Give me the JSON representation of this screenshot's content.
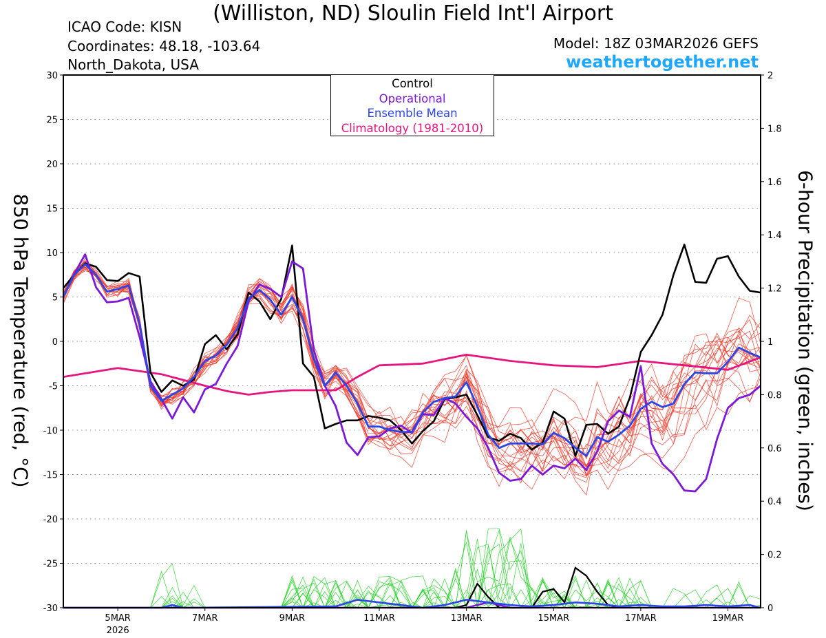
{
  "header": {
    "title": "(Williston, ND) Sloulin Field Int'l Airport",
    "icao": "ICAO Code: KISN",
    "coordinates": "Coordinates: 48.18, -103.64",
    "region": "North_Dakota, USA",
    "model": "Model: 18Z 03MAR2026 GEFS",
    "site": "weathertogether.net"
  },
  "colors": {
    "control": "#000000",
    "operational": "#7b19d6",
    "ensemble_mean": "#2b45e6",
    "climatology": "#e5157f",
    "members_temp": "#f03a2a",
    "members_precip": "#1fd01f"
  },
  "chart_data": {
    "type": "line",
    "title": "(Williston, ND) Sloulin Field Int'l Airport",
    "xlabel": "",
    "ylabel": "850 hPa Temperature (red, °C)",
    "y2label": "6-hour Precipitation (green, inches)",
    "x_unit": "day of March 2026",
    "xlim": [
      3.75,
      19.75
    ],
    "ylim": [
      -30,
      30
    ],
    "y2lim": [
      0,
      2
    ],
    "x_ticks": [
      5,
      7,
      9,
      11,
      13,
      15,
      17,
      19
    ],
    "x_tick_labels": [
      "5MAR",
      "7MAR",
      "9MAR",
      "11MAR",
      "13MAR",
      "15MAR",
      "17MAR",
      "19MAR"
    ],
    "x_year_label": "2026",
    "y_ticks": [
      30,
      25,
      20,
      15,
      10,
      5,
      0,
      -5,
      -10,
      -15,
      -20,
      -25,
      -30
    ],
    "y_tick_labels": [
      "30",
      "25",
      "20",
      "15",
      "10",
      "5",
      "0",
      "-5",
      "-10",
      "-15",
      "-20",
      "-25",
      "-30"
    ],
    "y2_ticks": [
      2,
      1.8,
      1.6,
      1.4,
      1.2,
      1,
      0.8,
      0.6,
      0.4,
      0.2,
      0
    ],
    "y2_tick_labels": [
      "2",
      "1.8",
      "1.6",
      "1.4",
      "1.2",
      "1",
      "0.8",
      "0.6",
      "0.4",
      "0.2",
      "0"
    ],
    "legend": [
      "Control",
      "Operational",
      "Ensemble Mean",
      "Climatology (1981-2010)"
    ],
    "legend_position": "top-center",
    "grid": "dotted horizontal",
    "series": [
      {
        "name": "Climatology (1981-2010)",
        "axis": "left",
        "x": [
          3.75,
          4.5,
          5.0,
          6.0,
          7.0,
          7.5,
          8.0,
          8.5,
          9.0,
          9.5,
          10.0,
          10.5,
          11.0,
          12.0,
          13.0,
          14.0,
          15.0,
          16.0,
          17.0,
          18.0,
          19.0,
          19.75
        ],
        "y": [
          -4.0,
          -3.4,
          -3.0,
          -3.7,
          -5.0,
          -5.6,
          -6.0,
          -5.7,
          -5.5,
          -5.5,
          -5.5,
          -4.0,
          -2.7,
          -2.5,
          -1.5,
          -2.2,
          -2.7,
          -2.9,
          -2.2,
          -2.7,
          -3.2,
          -1.8
        ]
      },
      {
        "name": "Control",
        "axis": "left",
        "x": [
          3.75,
          4.0,
          4.25,
          4.5,
          4.75,
          5.0,
          5.25,
          5.5,
          5.75,
          6.0,
          6.25,
          6.5,
          6.75,
          7.0,
          7.25,
          7.5,
          7.75,
          8.0,
          8.25,
          8.5,
          8.75,
          9.0,
          9.25,
          9.5,
          9.75,
          10.0,
          10.25,
          10.5,
          10.75,
          11.0,
          11.25,
          11.5,
          11.75,
          12.0,
          12.25,
          12.5,
          12.75,
          13.0,
          13.25,
          13.5,
          13.75,
          14.0,
          14.25,
          14.5,
          14.75,
          15.0,
          15.25,
          15.5,
          15.75,
          16.0,
          16.25,
          16.5,
          16.75,
          17.0,
          17.25,
          17.5,
          17.75,
          18.0,
          18.25,
          18.5,
          18.75,
          19.0,
          19.25,
          19.5,
          19.75
        ],
        "y": [
          6,
          7.5,
          8.8,
          8.4,
          6.9,
          6.8,
          7.7,
          7.3,
          -3.5,
          -5.7,
          -4.4,
          -5.0,
          -4.3,
          -0.3,
          0.7,
          -0.9,
          0.8,
          5.5,
          4.5,
          2.5,
          4.8,
          10.8,
          -2.5,
          -4,
          -9.8,
          -9.3,
          -8.9,
          -8.9,
          -8.4,
          -8.6,
          -8.9,
          -10.0,
          -11.5,
          -10.1,
          -9.0,
          -6.5,
          -6.3,
          -6.0,
          -8.3,
          -10.8,
          -11.2,
          -10.4,
          -10.9,
          -12.2,
          -11.4,
          -7.9,
          -8.7,
          -12.9,
          -9.4,
          -9.3,
          -10.4,
          -9.6,
          -6.3,
          -1.2,
          0.7,
          3.0,
          7.5,
          10.9,
          6.7,
          6.6,
          9.3,
          9.6,
          7.3,
          5.7,
          5.5
        ]
      },
      {
        "name": "Operational",
        "axis": "left",
        "x": [
          3.75,
          4.0,
          4.25,
          4.5,
          4.75,
          5.0,
          5.25,
          5.5,
          5.75,
          6.0,
          6.25,
          6.5,
          6.75,
          7.0,
          7.25,
          7.5,
          7.75,
          8.0,
          8.25,
          8.5,
          8.75,
          9.0,
          9.25,
          9.5,
          9.75,
          10.0,
          10.25,
          10.5,
          10.75,
          11.0,
          11.25,
          11.5,
          11.75,
          12.0,
          12.25,
          12.5,
          12.75,
          13.0,
          13.25,
          13.5,
          13.75,
          14.0,
          14.25,
          14.5,
          14.75,
          15.0,
          15.25,
          15.5,
          15.75,
          16.0,
          16.25,
          16.5,
          16.75,
          17.0,
          17.25,
          17.5,
          17.75,
          18.0,
          18.25,
          18.5,
          18.75,
          19.0,
          19.25,
          19.5,
          19.75
        ],
        "y": [
          5,
          7.6,
          9.8,
          6.1,
          4.4,
          4.5,
          4.9,
          0.5,
          -4.5,
          -6.5,
          -8.7,
          -6.3,
          -8.0,
          -5.4,
          -4.8,
          -2.5,
          -0.5,
          4.5,
          6.4,
          5.9,
          5.0,
          9.0,
          8.2,
          -1.0,
          -5.0,
          -7.3,
          -11.4,
          -12.8,
          -10.8,
          -10.7,
          -9.8,
          -9.5,
          -10.3,
          -8.2,
          -8.3,
          -6.4,
          -7.0,
          -8.5,
          -9.8,
          -12.0,
          -14.8,
          -15.7,
          -15.5,
          -14.0,
          -15.0,
          -14.0,
          -14.3,
          -13.2,
          -14.5,
          -12.4,
          -9.0,
          -7.8,
          -8.5,
          -2.8,
          -11.5,
          -13.8,
          -15.0,
          -16.8,
          -16.9,
          -15.5,
          -11.0,
          -7.5,
          -6.4,
          -6.0,
          -5.0
        ]
      },
      {
        "name": "Ensemble Mean",
        "axis": "left",
        "x": [
          3.75,
          4.0,
          4.25,
          4.5,
          4.75,
          5.0,
          5.25,
          5.5,
          5.75,
          6.0,
          6.25,
          6.5,
          6.75,
          7.0,
          7.25,
          7.5,
          7.75,
          8.0,
          8.25,
          8.5,
          8.75,
          9.0,
          9.25,
          9.5,
          9.75,
          10.0,
          10.25,
          10.5,
          10.75,
          11.0,
          11.25,
          11.5,
          11.75,
          12.0,
          12.25,
          12.5,
          12.75,
          13.0,
          13.25,
          13.5,
          13.75,
          14.0,
          14.25,
          14.5,
          14.75,
          15.0,
          15.25,
          15.5,
          15.75,
          16.0,
          16.25,
          16.5,
          16.75,
          17.0,
          17.25,
          17.5,
          17.75,
          18.0,
          18.25,
          18.5,
          18.75,
          19.0,
          19.25,
          19.5,
          19.75
        ],
        "y": [
          5,
          7.5,
          8.7,
          7.5,
          5.6,
          5.9,
          6.3,
          2.0,
          -5.0,
          -6.7,
          -6.0,
          -5.3,
          -4.0,
          -2.2,
          -1.6,
          -0.4,
          1.5,
          4.8,
          5.8,
          4.7,
          3.0,
          5.0,
          2.5,
          -2.0,
          -5.0,
          -3.5,
          -5.0,
          -7.0,
          -9.6,
          -9.6,
          -10.0,
          -10.2,
          -10.2,
          -8.0,
          -6.8,
          -6.4,
          -6.2,
          -4.6,
          -7.3,
          -10.5,
          -12.0,
          -11.5,
          -11.5,
          -11.5,
          -11.6,
          -10.3,
          -10.9,
          -12.0,
          -12.9,
          -10.8,
          -11.3,
          -10.5,
          -9.5,
          -7.6,
          -6.8,
          -7.4,
          -7.0,
          -4.8,
          -3.5,
          -3.6,
          -3.6,
          -2.3,
          -0.7,
          -1.3,
          -1.8
        ]
      }
    ],
    "precipitation_series": [
      {
        "name": "Control",
        "axis": "right",
        "x": [
          3.75,
          12.75,
          13.0,
          13.25,
          13.5,
          13.75,
          14.0,
          14.5,
          14.75,
          15.0,
          15.25,
          15.5,
          15.75,
          16.0,
          16.25,
          16.5
        ],
        "y": [
          0,
          0,
          0.01,
          0.09,
          0.04,
          0,
          0,
          0,
          0.06,
          0.07,
          0.02,
          0.15,
          0.12,
          0.06,
          0.01,
          0
        ]
      },
      {
        "name": "Operational",
        "axis": "right",
        "x": [
          3.75,
          13.0,
          13.25,
          13.5,
          13.75,
          14.0,
          19.75
        ],
        "y": [
          0,
          0,
          0.01,
          0.02,
          0.01,
          0,
          0
        ]
      },
      {
        "name": "Ensemble Mean",
        "axis": "right",
        "x": [
          3.75,
          6.0,
          6.25,
          6.5,
          10.0,
          10.5,
          11.0,
          11.5,
          12.0,
          12.5,
          13.0,
          13.5,
          14.0,
          14.5,
          15.0,
          15.5,
          16.0,
          16.5,
          17.0,
          17.5,
          18.0,
          18.5,
          19.0,
          19.5,
          19.75
        ],
        "y": [
          0,
          0,
          0.01,
          0,
          0.005,
          0.03,
          0.02,
          0.01,
          0,
          0.01,
          0.03,
          0.02,
          0.01,
          0.005,
          0.01,
          0.02,
          0.015,
          0.005,
          0.01,
          0.005,
          0.005,
          0.01,
          0.005,
          0.01,
          0
        ]
      }
    ]
  }
}
